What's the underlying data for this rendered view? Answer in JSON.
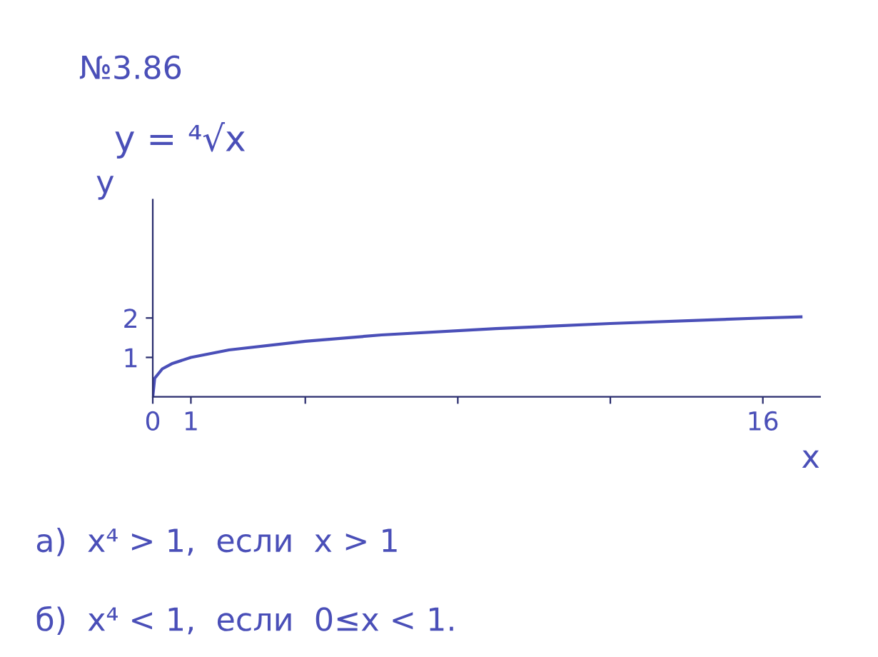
{
  "chart_data": {
    "type": "line",
    "title": "№3.86",
    "xlabel": "x",
    "ylabel": "y",
    "x": [
      0,
      0.05,
      0.25,
      0.5,
      1,
      2,
      4,
      6,
      9,
      12,
      16,
      17
    ],
    "series": [
      {
        "color": "#4a4fb8",
        "values": [
          0,
          0.47,
          0.71,
          0.84,
          1,
          1.19,
          1.41,
          1.57,
          1.73,
          1.86,
          2,
          2.03
        ]
      }
    ],
    "xlim": [
      0,
      17.5
    ],
    "ylim": [
      0,
      5
    ],
    "xticks": [
      0,
      1,
      {
        "value": 4,
        "label": null
      },
      {
        "value": 8,
        "label": null
      },
      {
        "value": 12,
        "label": null
      },
      16
    ],
    "yticks": [
      1,
      2
    ],
    "annotations": [
      "y = ⁴√x",
      "а)  x⁴ > 1,  если  x > 1",
      "б)  x⁴ < 1,  если  0≤x < 1."
    ],
    "grid": false,
    "legend": false,
    "marker": "none",
    "line_style": "solid"
  }
}
